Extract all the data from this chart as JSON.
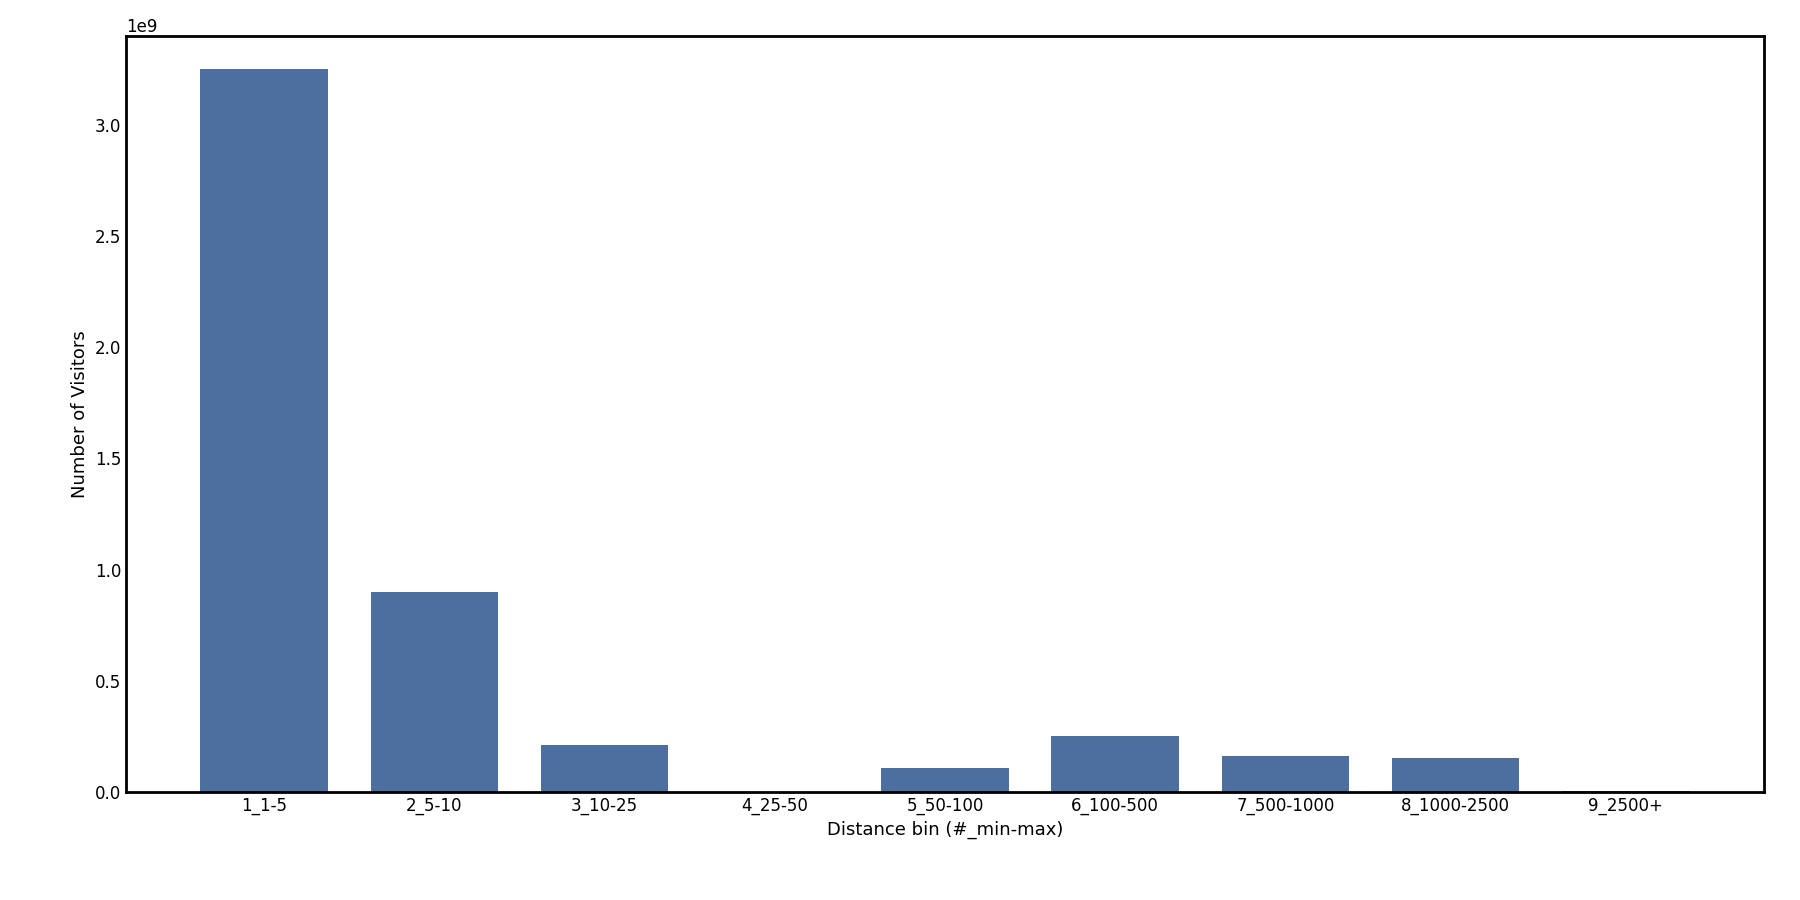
{
  "categories": [
    "1_1-5",
    "2_5-10",
    "3_10-25",
    "4_25-50",
    "5_50-100",
    "6_100-500",
    "7_500-1000",
    "8_1000-2500",
    "9_2500+"
  ],
  "values": [
    3250000000.0,
    900000000.0,
    210000000.0,
    2000000.0,
    110000000.0,
    250000000.0,
    160000000.0,
    155000000.0,
    4000000.0
  ],
  "bar_color": "#4d6fa0",
  "xlabel": "Distance bin (#_min-max)",
  "ylabel": "Number of Visitors",
  "ylim": [
    0,
    3400000000.0
  ],
  "figsize": [
    18.0,
    9.0
  ],
  "dpi": 100,
  "bar_width": 0.75,
  "tick_fontsize": 12,
  "label_fontsize": 13
}
